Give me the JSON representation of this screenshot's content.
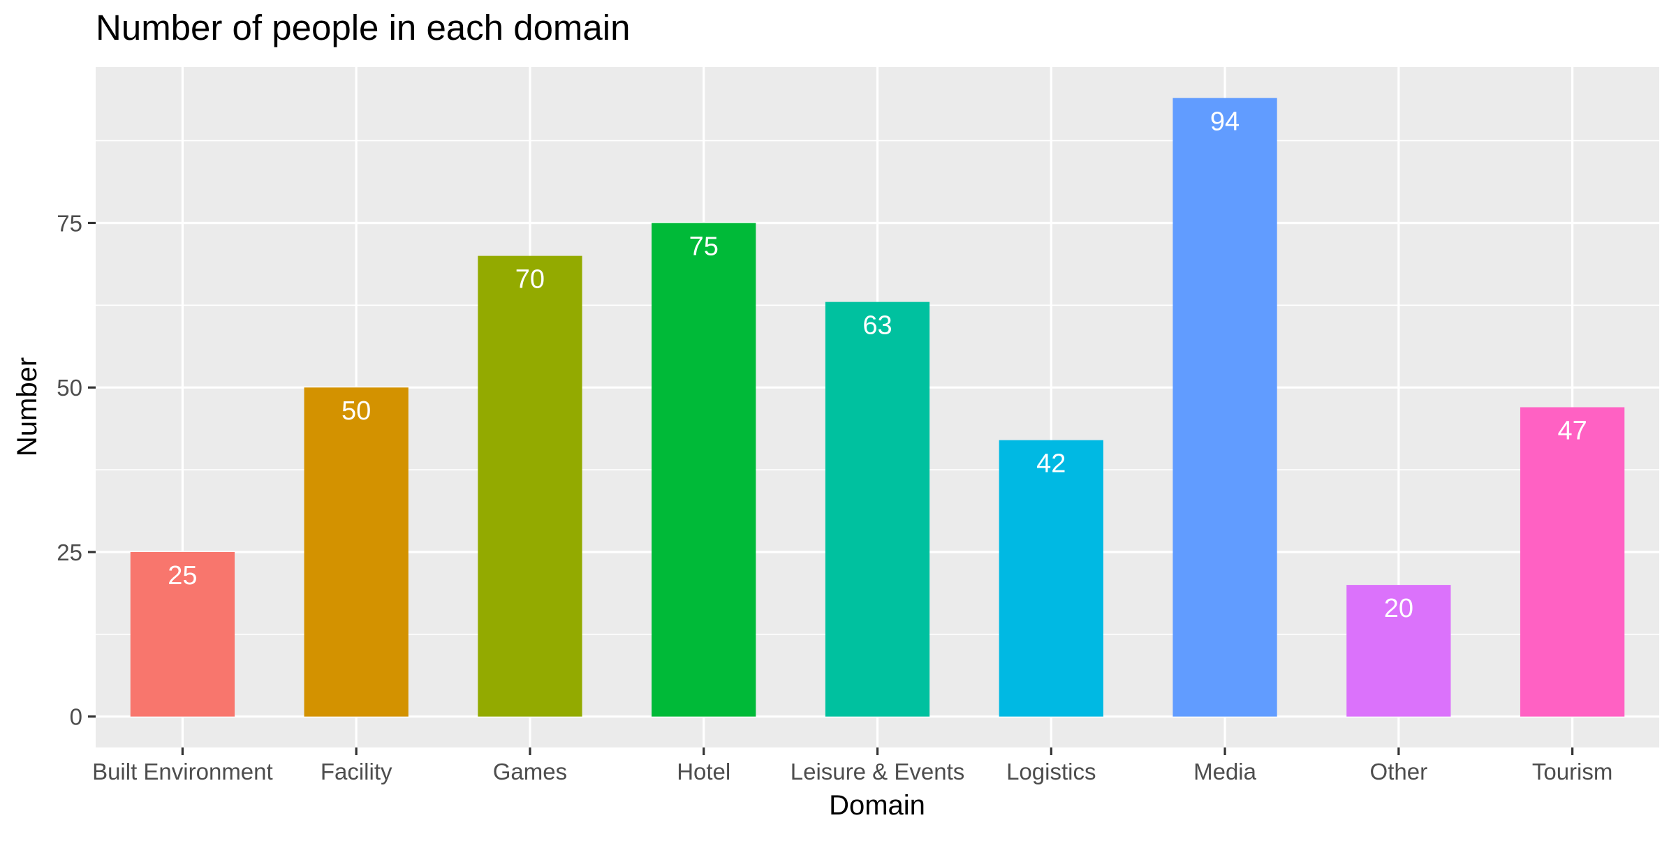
{
  "chart_data": {
    "type": "bar",
    "title": "Number of people in each domain",
    "xlabel": "Domain",
    "ylabel": "Number",
    "categories": [
      "Built Environment",
      "Facility",
      "Games",
      "Hotel",
      "Leisure & Events",
      "Logistics",
      "Media",
      "Other",
      "Tourism"
    ],
    "values": [
      25,
      50,
      70,
      75,
      63,
      42,
      94,
      20,
      47
    ],
    "colors": [
      "#F8766D",
      "#D39200",
      "#93AA00",
      "#00BA38",
      "#00C19F",
      "#00B9E3",
      "#619CFF",
      "#DB72FB",
      "#FF61C3"
    ],
    "yticks": [
      0,
      25,
      50,
      75
    ],
    "ylim": [
      -4.7,
      98.7
    ],
    "grid": true,
    "legend": "none"
  }
}
